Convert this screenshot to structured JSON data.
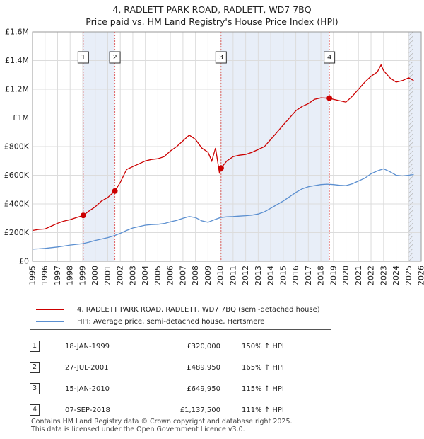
{
  "title": "4, RADLETT PARK ROAD, RADLETT, WD7 7BQ",
  "subtitle": "Price paid vs. HM Land Registry's House Price Index (HPI)",
  "colors": {
    "property": "#cc0000",
    "hpi": "#5b8fd0",
    "grid": "#dcdcdc",
    "marker": "#cc0000",
    "vline": "#e06666",
    "shade": "#e8eef8"
  },
  "chart_data": {
    "type": "line",
    "title": "4, RADLETT PARK ROAD, RADLETT, WD7 7BQ",
    "subtitle": "Price paid vs. HM Land Registry's House Price Index (HPI)",
    "xlim": [
      1995,
      2026
    ],
    "ylim": [
      0,
      1600000
    ],
    "y_ticks": [
      0,
      200000,
      400000,
      600000,
      800000,
      1000000,
      1200000,
      1400000,
      1600000
    ],
    "y_tick_labels": [
      "£0",
      "£200K",
      "£400K",
      "£600K",
      "£800K",
      "£1M",
      "£1.2M",
      "£1.4M",
      "£1.6M"
    ],
    "x_ticks": [
      1995,
      1996,
      1997,
      1998,
      1999,
      2000,
      2001,
      2002,
      2003,
      2004,
      2005,
      2006,
      2007,
      2008,
      2009,
      2010,
      2011,
      2012,
      2013,
      2014,
      2015,
      2016,
      2017,
      2018,
      2019,
      2020,
      2021,
      2022,
      2023,
      2024,
      2025,
      2026
    ],
    "x_tick_labels": [
      "1995",
      "1996",
      "1997",
      "1998",
      "1999",
      "2000",
      "2001",
      "2002",
      "2003",
      "2004",
      "2005",
      "2006",
      "2007",
      "2008",
      "2009",
      "2010",
      "2011",
      "2012",
      "2013",
      "2014",
      "2015",
      "2016",
      "2017",
      "2018",
      "2019",
      "2020",
      "2021",
      "2022",
      "2023",
      "2024",
      "2025",
      "2026"
    ],
    "grid": true,
    "series": [
      {
        "name": "4, RADLETT PARK ROAD, RADLETT, WD7 7BQ (semi-detached house)",
        "x": [
          1995,
          1995.5,
          1996,
          1996.5,
          1997,
          1997.5,
          1998,
          1998.5,
          1999.05,
          1999.5,
          2000,
          2000.5,
          2001,
          2001.57,
          2002,
          2002.5,
          2003,
          2003.5,
          2004,
          2004.5,
          2005,
          2005.5,
          2006,
          2006.5,
          2007,
          2007.5,
          2008,
          2008.5,
          2009,
          2009.3,
          2009.6,
          2009.9,
          2010.04,
          2010.5,
          2011,
          2011.5,
          2012,
          2012.5,
          2013,
          2013.5,
          2014,
          2014.5,
          2015,
          2015.5,
          2016,
          2016.5,
          2017,
          2017.5,
          2018,
          2018.68,
          2019,
          2019.5,
          2020,
          2020.5,
          2021,
          2021.5,
          2022,
          2022.5,
          2022.8,
          2023,
          2023.5,
          2024,
          2024.5,
          2025,
          2025.4
        ],
        "values": [
          215000,
          222000,
          225000,
          245000,
          265000,
          280000,
          290000,
          305000,
          320000,
          350000,
          380000,
          420000,
          445000,
          489950,
          550000,
          640000,
          660000,
          680000,
          700000,
          710000,
          715000,
          730000,
          770000,
          800000,
          840000,
          880000,
          850000,
          790000,
          760000,
          700000,
          790000,
          620000,
          649950,
          700000,
          730000,
          740000,
          745000,
          760000,
          780000,
          800000,
          850000,
          900000,
          950000,
          1000000,
          1050000,
          1080000,
          1100000,
          1130000,
          1140000,
          1137500,
          1130000,
          1120000,
          1110000,
          1150000,
          1200000,
          1250000,
          1290000,
          1320000,
          1370000,
          1330000,
          1280000,
          1250000,
          1260000,
          1280000,
          1260000
        ]
      },
      {
        "name": "HPI: Average price, semi-detached house, Hertsmere",
        "x": [
          1995,
          1995.5,
          1996,
          1996.5,
          1997,
          1997.5,
          1998,
          1998.5,
          1999,
          1999.5,
          2000,
          2000.5,
          2001,
          2001.5,
          2002,
          2002.5,
          2003,
          2003.5,
          2004,
          2004.5,
          2005,
          2005.5,
          2006,
          2006.5,
          2007,
          2007.5,
          2008,
          2008.5,
          2009,
          2009.5,
          2010,
          2010.5,
          2011,
          2011.5,
          2012,
          2012.5,
          2013,
          2013.5,
          2014,
          2014.5,
          2015,
          2015.5,
          2016,
          2016.5,
          2017,
          2017.5,
          2018,
          2018.5,
          2019,
          2019.5,
          2020,
          2020.5,
          2021,
          2021.5,
          2022,
          2022.5,
          2023,
          2023.5,
          2024,
          2024.5,
          2025,
          2025.4
        ],
        "values": [
          85000,
          87000,
          90000,
          95000,
          100000,
          106000,
          113000,
          118000,
          123000,
          133000,
          145000,
          155000,
          165000,
          178000,
          195000,
          215000,
          232000,
          242000,
          252000,
          256000,
          258000,
          263000,
          275000,
          285000,
          300000,
          312000,
          305000,
          282000,
          272000,
          290000,
          305000,
          310000,
          312000,
          315000,
          318000,
          322000,
          330000,
          345000,
          370000,
          395000,
          420000,
          450000,
          480000,
          505000,
          520000,
          528000,
          535000,
          538000,
          535000,
          530000,
          528000,
          540000,
          560000,
          580000,
          610000,
          630000,
          645000,
          625000,
          600000,
          595000,
          600000,
          605000
        ]
      }
    ],
    "sales": [
      {
        "label": "1",
        "x": 1999.05,
        "value": 320000
      },
      {
        "label": "2",
        "x": 2001.57,
        "value": 489950
      },
      {
        "label": "3",
        "x": 2010.04,
        "value": 649950
      },
      {
        "label": "4",
        "x": 2018.68,
        "value": 1137500
      }
    ],
    "shaded_ranges": [
      [
        1999.05,
        2001.57
      ],
      [
        2010.04,
        2018.68
      ],
      [
        2025.0,
        2026.0
      ]
    ]
  },
  "legend": {
    "property_label": "4, RADLETT PARK ROAD, RADLETT, WD7 7BQ (semi-detached house)",
    "hpi_label": "HPI: Average price, semi-detached house, Hertsmere"
  },
  "transactions": [
    {
      "num": "1",
      "date": "18-JAN-1999",
      "price": "£320,000",
      "hpi": "150% ↑ HPI"
    },
    {
      "num": "2",
      "date": "27-JUL-2001",
      "price": "£489,950",
      "hpi": "165% ↑ HPI"
    },
    {
      "num": "3",
      "date": "15-JAN-2010",
      "price": "£649,950",
      "hpi": "115% ↑ HPI"
    },
    {
      "num": "4",
      "date": "07-SEP-2018",
      "price": "£1,137,500",
      "hpi": "111% ↑ HPI"
    }
  ],
  "footer": {
    "line1": "Contains HM Land Registry data © Crown copyright and database right 2025.",
    "line2": "This data is licensed under the Open Government Licence v3.0."
  }
}
